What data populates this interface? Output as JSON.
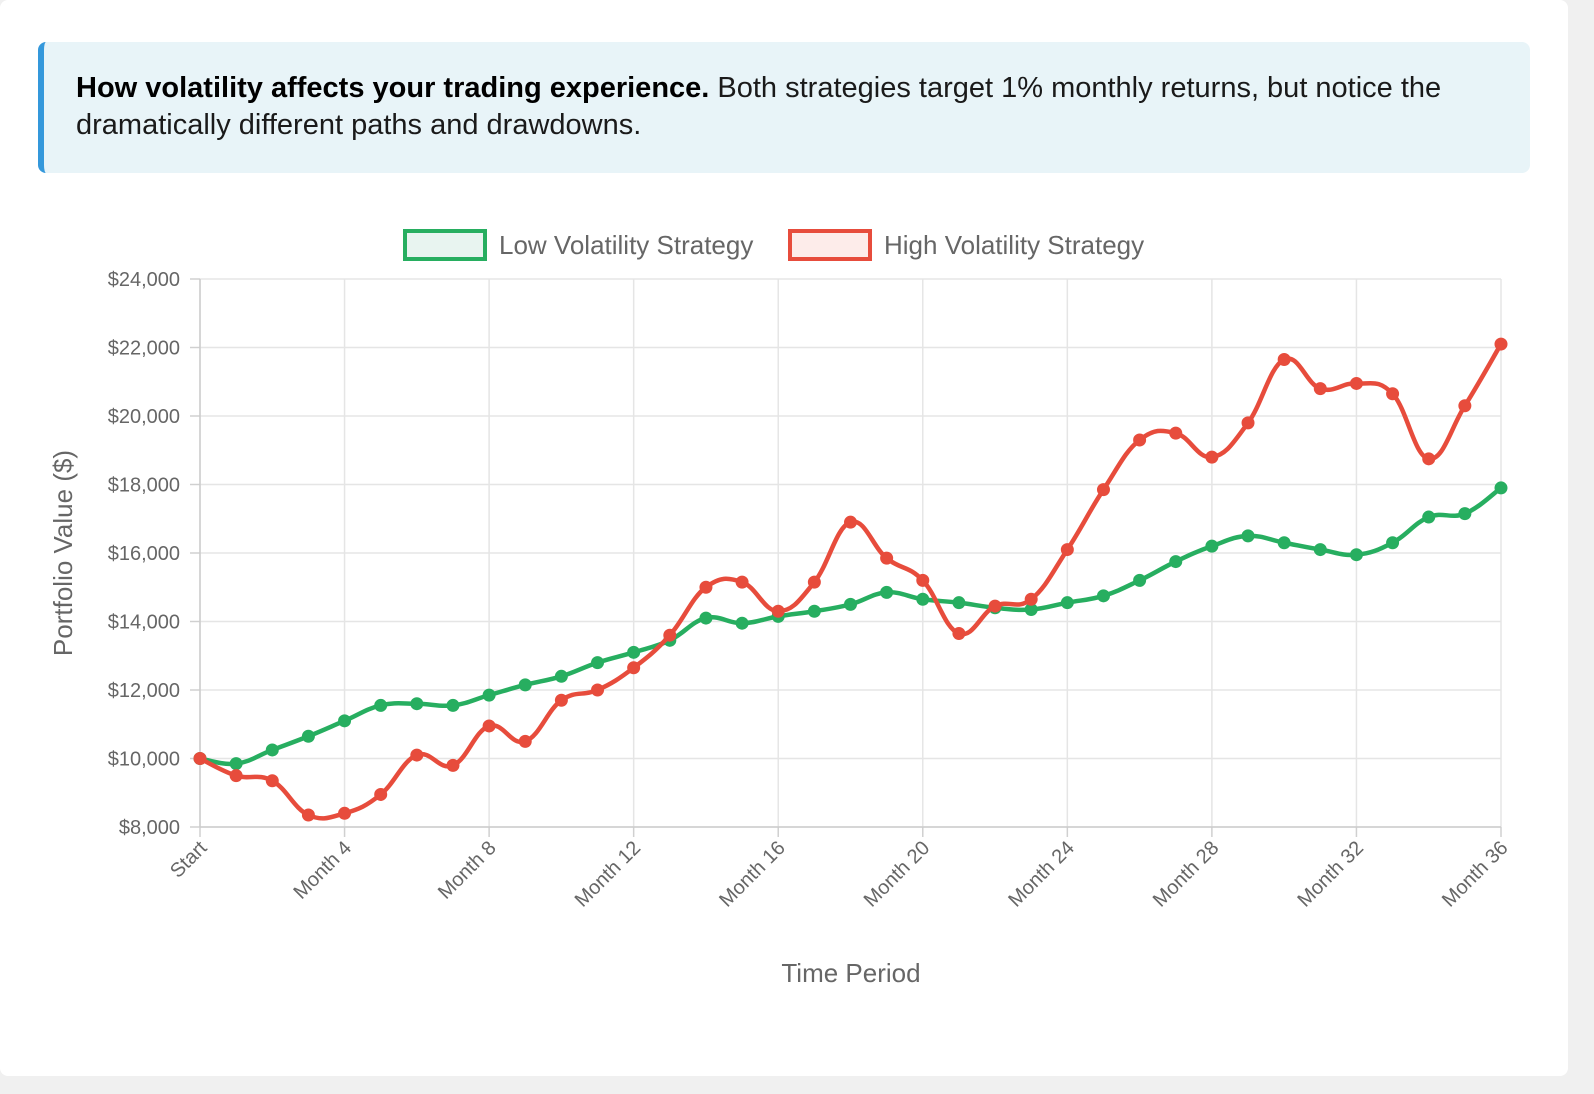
{
  "info": {
    "lead": "How volatility affects your trading experience.",
    "body": " Both strategies target 1% monthly returns, but notice the dramatically different paths and drawdowns."
  },
  "chart_data": {
    "type": "line",
    "x": [
      "Start",
      "Month 1",
      "Month 2",
      "Month 3",
      "Month 4",
      "Month 5",
      "Month 6",
      "Month 7",
      "Month 8",
      "Month 9",
      "Month 10",
      "Month 11",
      "Month 12",
      "Month 13",
      "Month 14",
      "Month 15",
      "Month 16",
      "Month 17",
      "Month 18",
      "Month 19",
      "Month 20",
      "Month 21",
      "Month 22",
      "Month 23",
      "Month 24",
      "Month 25",
      "Month 26",
      "Month 27",
      "Month 28",
      "Month 29",
      "Month 30",
      "Month 31",
      "Month 32",
      "Month 33",
      "Month 34",
      "Month 35",
      "Month 36"
    ],
    "visible_tick_labels": [
      "Start",
      "Month 4",
      "Month 8",
      "Month 12",
      "Month 16",
      "Month 20",
      "Month 24",
      "Month 28",
      "Month 32",
      "Month 36"
    ],
    "series": [
      {
        "name": "Low Volatility Strategy",
        "color": "#27ae60",
        "fill": "#e8f4f0",
        "values": [
          10000,
          9850,
          10250,
          10650,
          11100,
          11550,
          11600,
          11550,
          11850,
          12150,
          12400,
          12800,
          13100,
          13450,
          14100,
          13950,
          14150,
          14300,
          14500,
          14850,
          14650,
          14550,
          14400,
          14350,
          14550,
          14750,
          15200,
          15750,
          16200,
          16500,
          16300,
          16100,
          15950,
          16300,
          17050,
          17150,
          17900
        ]
      },
      {
        "name": "High Volatility Strategy",
        "color": "#e74c3c",
        "fill": "#fdecea",
        "values": [
          10000,
          9500,
          9350,
          8350,
          8400,
          8950,
          10100,
          9800,
          10950,
          10500,
          11700,
          12000,
          12650,
          13600,
          15000,
          15150,
          14300,
          15150,
          16900,
          15850,
          15200,
          13650,
          14450,
          14650,
          16100,
          17850,
          19300,
          19500,
          18800,
          19800,
          21650,
          20800,
          20950,
          20650,
          18750,
          20300,
          22100
        ]
      }
    ],
    "ylim": [
      8000,
      24000
    ],
    "yticks": [
      8000,
      10000,
      12000,
      14000,
      16000,
      18000,
      20000,
      22000,
      24000
    ],
    "ytick_labels": [
      "$8,000",
      "$10,000",
      "$12,000",
      "$14,000",
      "$16,000",
      "$18,000",
      "$20,000",
      "$22,000",
      "$24,000"
    ],
    "xlabel": "Time Period",
    "ylabel": "Portfolio Value ($)",
    "grid": true,
    "legend": "top"
  }
}
